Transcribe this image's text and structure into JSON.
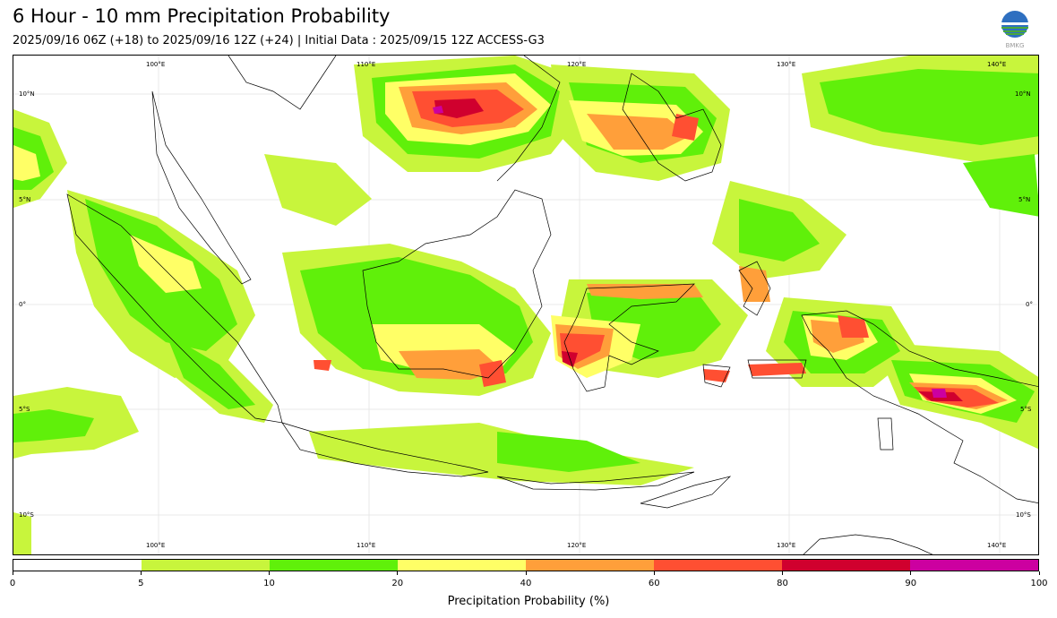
{
  "header": {
    "title": "6 Hour - 10 mm Precipitation Probability",
    "subtitle": "2025/09/16 06Z (+18) to 2025/09/16 12Z (+24) | Initial Data : 2025/09/15 12Z ACCESS-G3",
    "logo_text": "BMKG"
  },
  "map": {
    "lon_labels_top": [
      "100°E",
      "110°E",
      "120°E",
      "130°E",
      "140°E"
    ],
    "lon_labels_bottom": [
      "100°E",
      "110°E",
      "120°E",
      "130°E",
      "140°E"
    ],
    "lat_labels_left": [
      "10°N",
      "5°N",
      "0°",
      "5°S",
      "10°S"
    ],
    "lat_labels_right": [
      "10°N",
      "5°N",
      "0°",
      "5°S",
      "10°S"
    ],
    "grid": true,
    "colors": {
      "p5": "#c8f53c",
      "p10": "#60f00a",
      "p20": "#ffff66",
      "p40": "#ff9f3a",
      "p60": "#ff4f32",
      "p80": "#d0002e",
      "p90": "#cc00a0",
      "coast": "#000000"
    }
  },
  "colorbar": {
    "title": "Precipitation Probability (%)",
    "ticks": [
      "0",
      "5",
      "10",
      "20",
      "40",
      "60",
      "80",
      "90",
      "100"
    ],
    "colors": [
      "#ffffff",
      "#c8f53c",
      "#60f00a",
      "#ffff66",
      "#ff9f3a",
      "#ff4f32",
      "#d0002e",
      "#cc00a0"
    ]
  }
}
